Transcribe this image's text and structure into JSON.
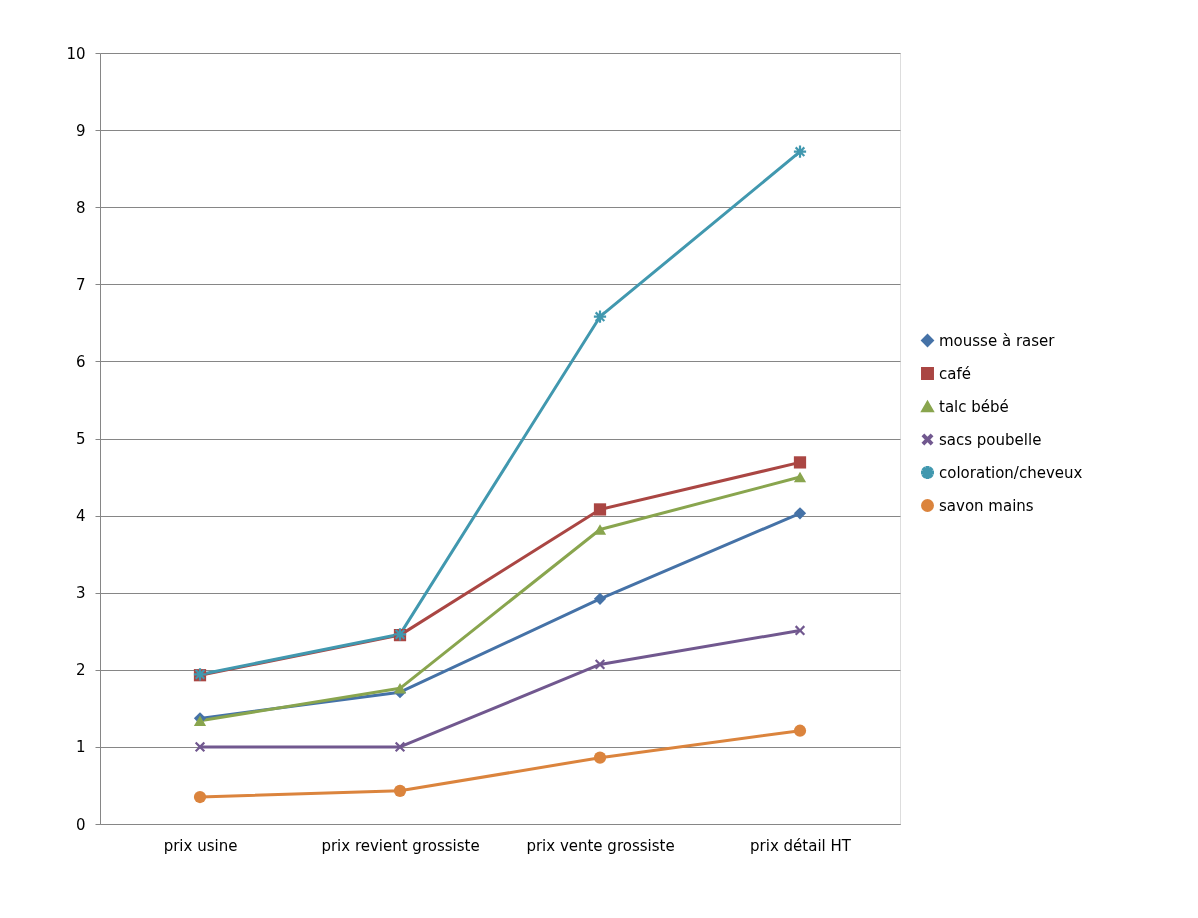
{
  "chart_data": {
    "type": "line",
    "categories": [
      "prix usine",
      "prix revient grossiste",
      "prix vente grossiste",
      "prix détail HT"
    ],
    "series": [
      {
        "name": "mousse à raser",
        "color": "#4572a7",
        "marker": "diamond",
        "values": [
          1.37,
          1.71,
          2.92,
          4.03
        ]
      },
      {
        "name": "café",
        "color": "#aa4643",
        "marker": "square",
        "values": [
          1.93,
          2.45,
          4.08,
          4.69
        ]
      },
      {
        "name": "talc bébé",
        "color": "#89a54e",
        "marker": "triangle",
        "values": [
          1.34,
          1.76,
          3.82,
          4.5
        ]
      },
      {
        "name": "sacs poubelle",
        "color": "#71588f",
        "marker": "cross",
        "values": [
          1.0,
          1.0,
          2.07,
          2.51
        ]
      },
      {
        "name": "coloration/cheveux",
        "color": "#4198af",
        "marker": "star",
        "values": [
          1.94,
          2.46,
          6.58,
          8.72
        ]
      },
      {
        "name": "savon mains",
        "color": "#db843d",
        "marker": "circle",
        "values": [
          0.35,
          0.43,
          0.86,
          1.21
        ]
      }
    ],
    "ylim": [
      0,
      10
    ],
    "yticks": [
      0,
      1,
      2,
      3,
      4,
      5,
      6,
      7,
      8,
      9,
      10
    ],
    "grid": "y",
    "legend": "right",
    "line_style": "solid"
  }
}
